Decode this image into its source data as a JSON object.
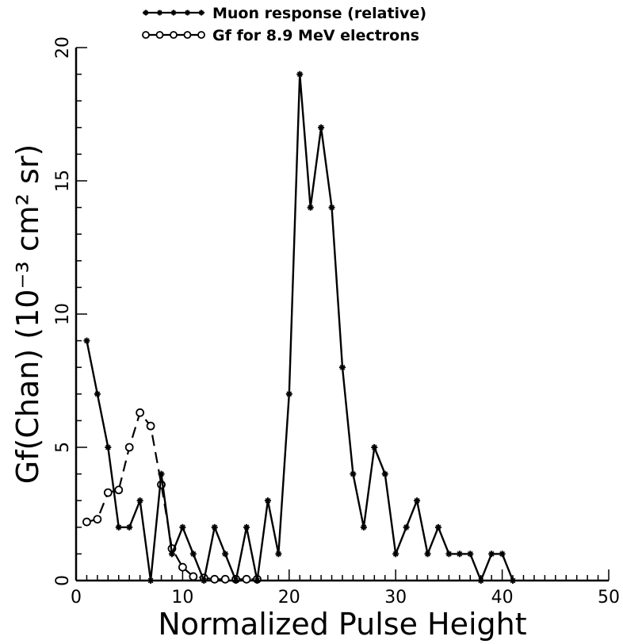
{
  "chart_data": {
    "type": "line",
    "xlabel": "Normalized Pulse Height",
    "ylabel": "Gf(Chan)  (10⁻³ cm² sr)",
    "xlim": [
      0,
      50
    ],
    "ylim": [
      0,
      20
    ],
    "x_ticks": [
      "0",
      "10",
      "20",
      "30",
      "40",
      "50"
    ],
    "y_ticks": [
      "0",
      "5",
      "10",
      "15",
      "20"
    ],
    "grid": false,
    "legend_position": "top",
    "series": [
      {
        "name": "Muon response (relative)",
        "marker": "filled-star",
        "line_style": "solid",
        "color": "#000000",
        "x": [
          1,
          2,
          3,
          4,
          5,
          6,
          7,
          8,
          9,
          10,
          11,
          12,
          13,
          14,
          15,
          16,
          17,
          18,
          19,
          20,
          21,
          22,
          23,
          24,
          25,
          26,
          27,
          28,
          29,
          30,
          31,
          32,
          33,
          34,
          35,
          36,
          37,
          38,
          39,
          40,
          41
        ],
        "y": [
          9,
          7,
          5,
          2,
          2,
          3,
          0,
          4,
          1,
          2,
          1,
          0,
          2,
          1,
          0,
          2,
          0,
          3,
          1,
          7,
          19,
          14,
          17,
          14,
          8,
          4,
          2,
          5,
          4,
          1,
          2,
          3,
          1,
          2,
          1,
          1,
          1,
          0,
          1,
          1,
          0
        ]
      },
      {
        "name": "Gf for 8.9 MeV electrons",
        "marker": "open-circle",
        "line_style": "dashed",
        "color": "#000000",
        "x": [
          1,
          2,
          3,
          4,
          5,
          6,
          7,
          8,
          9,
          10,
          11,
          12,
          13,
          14,
          15,
          16,
          17
        ],
        "y": [
          2.2,
          2.3,
          3.3,
          3.4,
          5.0,
          6.3,
          5.8,
          3.6,
          1.2,
          0.5,
          0.15,
          0.1,
          0.05,
          0.05,
          0.05,
          0.05,
          0.05
        ]
      }
    ]
  }
}
